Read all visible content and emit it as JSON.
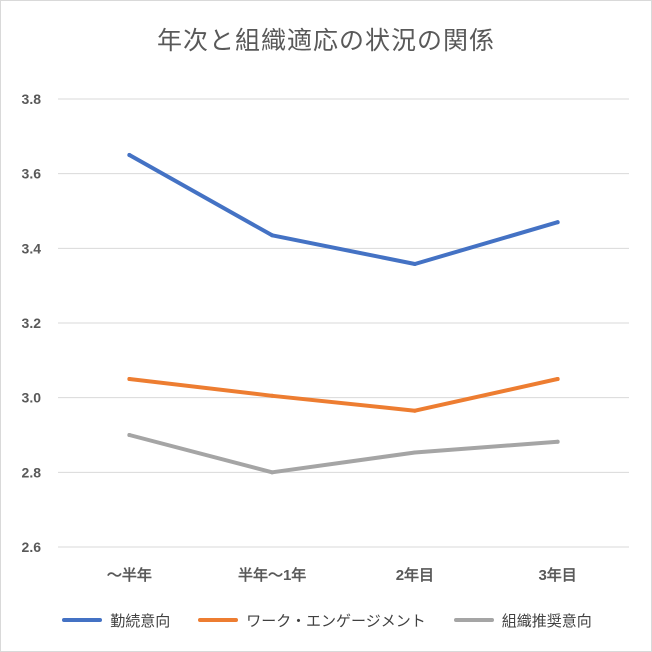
{
  "chart_data": {
    "type": "line",
    "title": "年次と組織適応の状況の関係",
    "categories": [
      "〜半年",
      "半年〜1年",
      "2年目",
      "3年目"
    ],
    "series": [
      {
        "name": "勤続意向",
        "color": "#4472c4",
        "values": [
          3.65,
          3.435,
          3.358,
          3.47
        ]
      },
      {
        "name": "ワーク・エンゲージメント",
        "color": "#ed7d31",
        "values": [
          3.05,
          3.005,
          2.965,
          3.05
        ]
      },
      {
        "name": "組織推奨意向",
        "color": "#a5a5a5",
        "values": [
          2.9,
          2.8,
          2.853,
          2.882
        ]
      }
    ],
    "ylim": [
      2.6,
      3.8
    ],
    "yticks": [
      "2.6",
      "2.8",
      "3.0",
      "3.2",
      "3.4",
      "3.6",
      "3.8"
    ],
    "grid": true,
    "legend": "bottom",
    "xlabel": "",
    "ylabel": ""
  }
}
